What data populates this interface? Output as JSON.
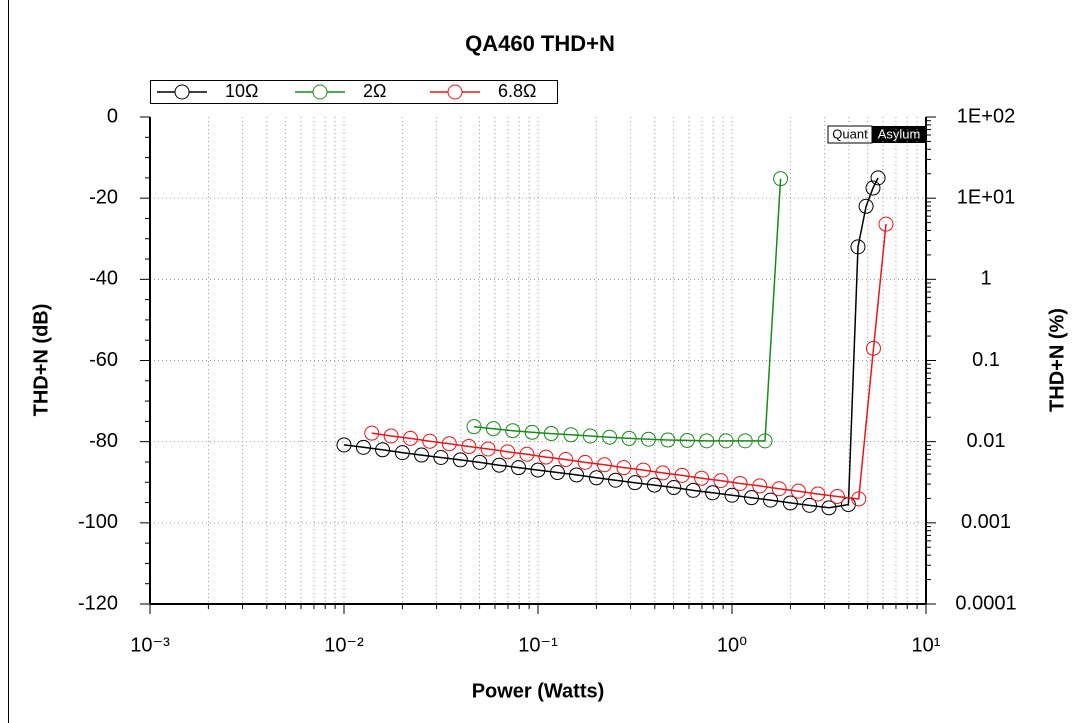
{
  "chart_data": {
    "type": "line",
    "title": "QA460 THD+N",
    "x_label": "Power (Watts)",
    "y_label": "THD+N (dB)",
    "y2_label": "THD+N (%)",
    "watermark": [
      "Quant",
      "Asylum"
    ],
    "x_log": true,
    "y2_log": true,
    "grid": true,
    "minor_grid": true,
    "xlim": [
      0.001,
      10
    ],
    "xticks": [
      {
        "value": 0.001,
        "label": "10⁻³"
      },
      {
        "value": 0.01,
        "label": "10⁻²"
      },
      {
        "value": 0.1,
        "label": "10⁻¹"
      },
      {
        "value": 1,
        "label": "10⁰"
      },
      {
        "value": 10,
        "label": "10¹"
      }
    ],
    "ylim": [
      -120,
      0
    ],
    "yticks": [
      -120,
      -100,
      -80,
      -60,
      -40,
      -20,
      0
    ],
    "y2lim": [
      0.0001,
      100
    ],
    "y2ticks": [
      {
        "value": 0.0001,
        "label": "0.0001"
      },
      {
        "value": 0.001,
        "label": "0.001"
      },
      0.01,
      0.1,
      1,
      {
        "value": 10,
        "label": "1E+01"
      },
      {
        "value": 100,
        "label": "1E+02"
      }
    ],
    "series": [
      {
        "name": "10Ω",
        "color": "#000000",
        "x": [
          0.01,
          0.0126,
          0.0158,
          0.02,
          0.0251,
          0.0316,
          0.0398,
          0.0501,
          0.0631,
          0.0794,
          0.1,
          0.126,
          0.158,
          0.2,
          0.251,
          0.316,
          0.398,
          0.501,
          0.631,
          0.794,
          1,
          1.26,
          1.58,
          2,
          2.51,
          3.16,
          3.98,
          4.46,
          4.91,
          5.33,
          5.66
        ],
        "values": [
          -80.8,
          -81.4,
          -82.0,
          -82.7,
          -83.3,
          -83.9,
          -84.5,
          -85.1,
          -85.8,
          -86.4,
          -87.0,
          -87.6,
          -88.2,
          -88.9,
          -89.5,
          -90.1,
          -90.7,
          -91.3,
          -92.0,
          -92.6,
          -93.2,
          -93.8,
          -94.4,
          -95.1,
          -95.7,
          -96.3,
          -95.5,
          -32,
          -22,
          -17.5,
          -15
        ]
      },
      {
        "name": "2Ω",
        "color": "#1a8a1a",
        "x": [
          0.0468,
          0.0589,
          0.0741,
          0.0933,
          0.117,
          0.148,
          0.186,
          0.234,
          0.295,
          0.371,
          0.467,
          0.588,
          0.74,
          0.932,
          1.17,
          1.48,
          1.78
        ],
        "values": [
          -76.3,
          -76.8,
          -77.3,
          -77.7,
          -78.0,
          -78.3,
          -78.6,
          -78.9,
          -79.2,
          -79.4,
          -79.6,
          -79.7,
          -79.8,
          -79.8,
          -79.8,
          -79.8,
          -15.2
        ]
      },
      {
        "name": "6.8Ω",
        "color": "#e8161b",
        "x": [
          0.0139,
          0.0175,
          0.022,
          0.0277,
          0.0349,
          0.044,
          0.0553,
          0.0697,
          0.0877,
          0.11,
          0.139,
          0.175,
          0.22,
          0.277,
          0.349,
          0.44,
          0.553,
          0.697,
          0.877,
          1.1,
          1.39,
          1.75,
          2.2,
          2.77,
          3.49,
          4.5,
          5.36,
          6.22
        ],
        "values": [
          -77.9,
          -78.6,
          -79.2,
          -79.9,
          -80.5,
          -81.2,
          -81.8,
          -82.5,
          -83.1,
          -83.8,
          -84.4,
          -85.1,
          -85.7,
          -86.4,
          -87.0,
          -87.7,
          -88.3,
          -89.0,
          -89.6,
          -90.3,
          -90.9,
          -91.6,
          -92.2,
          -92.9,
          -93.5,
          -94.1,
          -57,
          -26.4
        ]
      }
    ]
  }
}
